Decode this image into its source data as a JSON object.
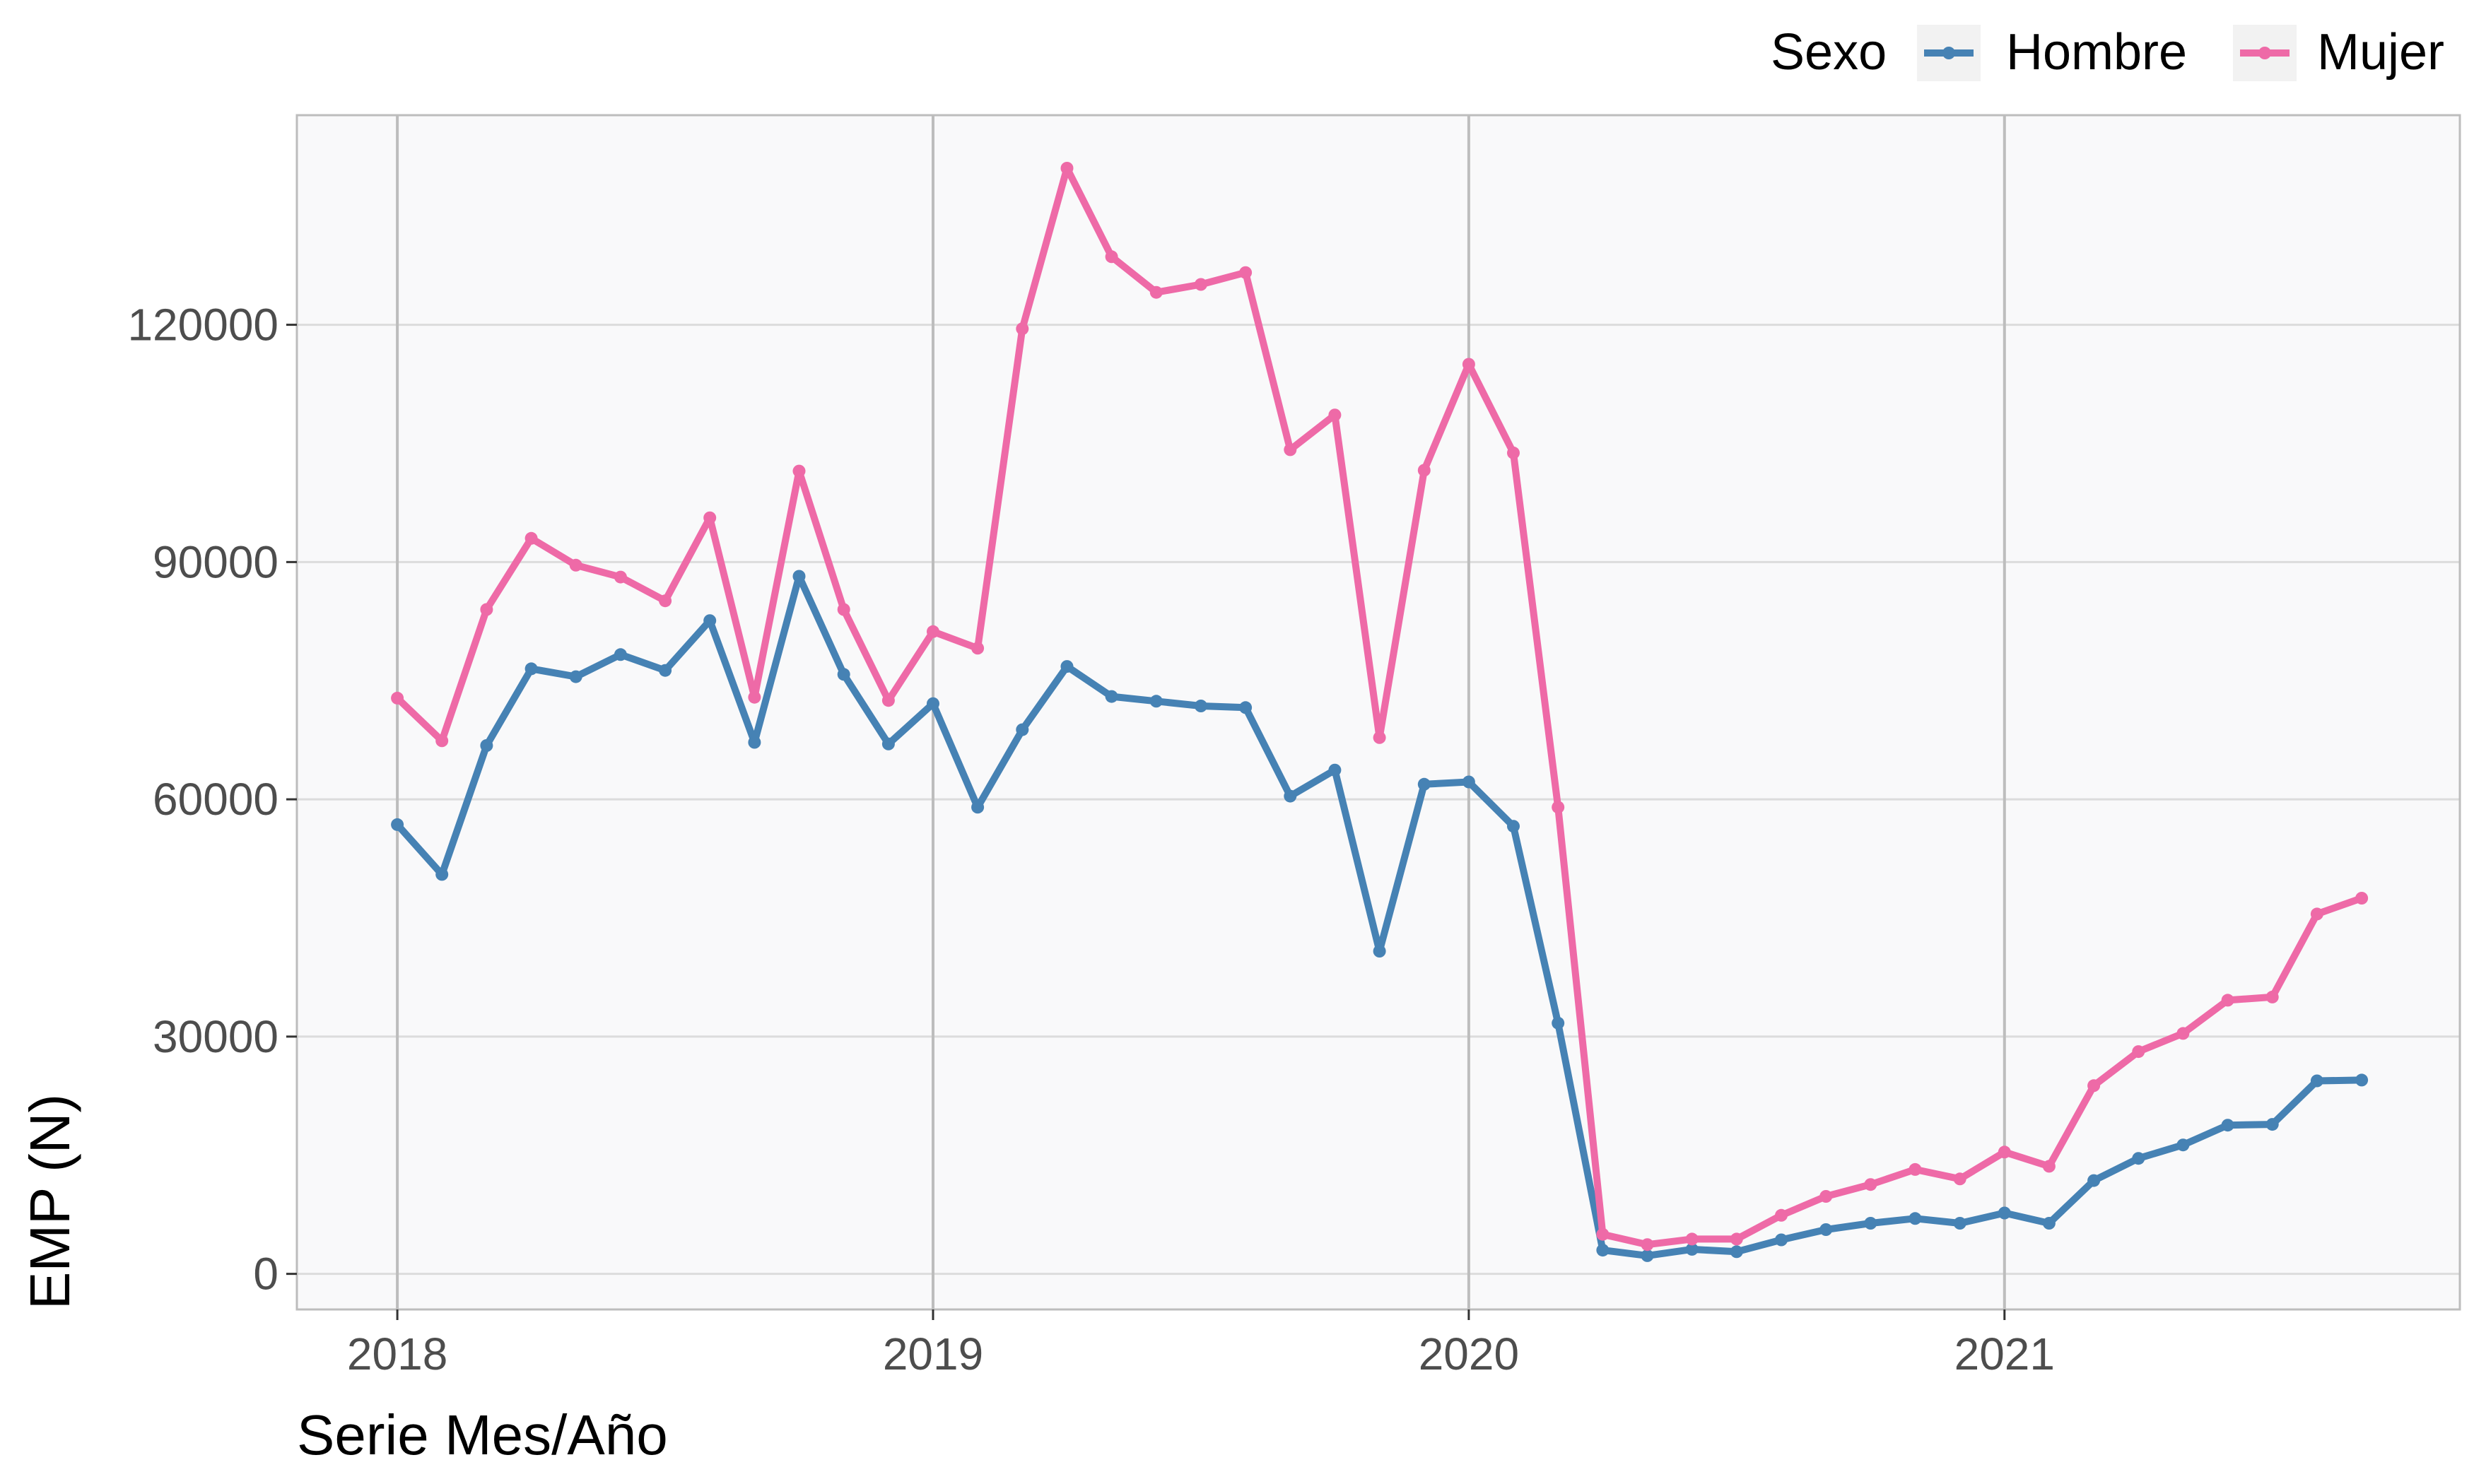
{
  "chart_data": {
    "type": "line",
    "xlabel": "Serie Mes/Año",
    "ylabel": "EMP (N)",
    "x_ticks": [
      2018,
      2019,
      2020,
      2021
    ],
    "y_ticks": [
      0,
      30000,
      60000,
      90000,
      120000
    ],
    "xlim": [
      2017.8125,
      2021.85
    ],
    "ylim": [
      -4500,
      146500
    ],
    "grid": true,
    "legend": {
      "title": "Sexo",
      "position": "top-right",
      "entries": [
        "Hombre",
        "Mujer"
      ]
    },
    "x": [
      2018.0,
      2018.0833,
      2018.1667,
      2018.25,
      2018.3333,
      2018.4167,
      2018.5,
      2018.5833,
      2018.6667,
      2018.75,
      2018.8333,
      2018.9167,
      2019.0,
      2019.0833,
      2019.1667,
      2019.25,
      2019.3333,
      2019.4167,
      2019.5,
      2019.5833,
      2019.6667,
      2019.75,
      2019.8333,
      2019.9167,
      2020.0,
      2020.0833,
      2020.1667,
      2020.25,
      2020.3333,
      2020.4167,
      2020.5,
      2020.5833,
      2020.6667,
      2020.75,
      2020.8333,
      2020.9167,
      2021.0,
      2021.0833,
      2021.1667,
      2021.25,
      2021.3333,
      2021.4167,
      2021.5,
      2021.5833,
      2021.6667
    ],
    "series": [
      {
        "name": "Hombre",
        "color": "#4682b4",
        "values": [
          56800,
          50500,
          66800,
          76500,
          75500,
          78300,
          76300,
          82600,
          67200,
          88200,
          75800,
          67000,
          72100,
          59000,
          68800,
          76800,
          73000,
          72400,
          71800,
          71600,
          60400,
          63700,
          40800,
          61900,
          62200,
          56600,
          31700,
          3000,
          2300,
          3100,
          2800,
          4300,
          5600,
          6400,
          7000,
          6400,
          7700,
          6400,
          11800,
          14600,
          16300,
          18800,
          18900,
          24400,
          24500
        ]
      },
      {
        "name": "Mujer",
        "color": "#ee6aa7",
        "values": [
          72800,
          67400,
          84000,
          93000,
          89600,
          88100,
          85100,
          95600,
          72900,
          101500,
          84000,
          72500,
          81200,
          79100,
          119500,
          139800,
          128600,
          124100,
          125100,
          126600,
          104200,
          108600,
          67800,
          101600,
          115000,
          103800,
          59000,
          5000,
          3700,
          4400,
          4400,
          7400,
          9800,
          11300,
          13200,
          12000,
          15400,
          13600,
          23800,
          28100,
          30400,
          34600,
          35000,
          45500,
          47500
        ]
      }
    ]
  }
}
